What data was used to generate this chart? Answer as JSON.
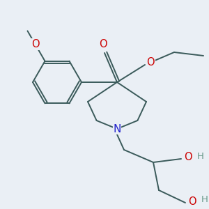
{
  "bg_color": "#eaeff5",
  "bond_color": "#3a5a5a",
  "lw": 1.4,
  "atom_colors": {
    "O": "#cc0000",
    "N": "#2222cc",
    "H": "#6a9a8a",
    "C": "#3a5a5a"
  },
  "fontsize": 10.5
}
